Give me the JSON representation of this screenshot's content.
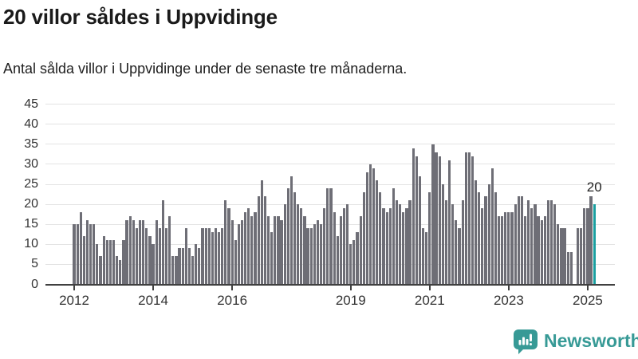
{
  "header": {
    "title": "20 villor såldes i Uppvidinge",
    "subtitle": "Antal sålda villor i Uppvidinge under de senaste tre månaderna."
  },
  "chart_data": {
    "type": "bar",
    "title": "20 villor såldes i Uppvidinge",
    "xlabel": "",
    "ylabel": "",
    "x_start": "2012-01",
    "interval": "monthly",
    "ylim": [
      0,
      45
    ],
    "grid": true,
    "legend": false,
    "y_ticks": [
      0,
      5,
      10,
      15,
      20,
      25,
      30,
      35,
      40,
      45
    ],
    "x_ticks": [
      {
        "label": "2012",
        "month": 0
      },
      {
        "label": "2014",
        "month": 24
      },
      {
        "label": "2016",
        "month": 48
      },
      {
        "label": "2019",
        "month": 84
      },
      {
        "label": "2021",
        "month": 108
      },
      {
        "label": "2023",
        "month": 132
      },
      {
        "label": "2025",
        "month": 156
      }
    ],
    "values": [
      15,
      15,
      18,
      12,
      16,
      15,
      15,
      10,
      7,
      12,
      11,
      11,
      11,
      7,
      6,
      11,
      16,
      17,
      16,
      14,
      16,
      16,
      14,
      12,
      10,
      16,
      14,
      21,
      14,
      17,
      7,
      7,
      9,
      9,
      14,
      9,
      7,
      10,
      9,
      14,
      14,
      14,
      13,
      14,
      13,
      14,
      21,
      19,
      16,
      11,
      15,
      16,
      18,
      19,
      17,
      18,
      22,
      26,
      22,
      17,
      13,
      17,
      17,
      16,
      20,
      24,
      27,
      23,
      20,
      19,
      17,
      14,
      14,
      15,
      16,
      15,
      19,
      24,
      24,
      18,
      12,
      17,
      19,
      20,
      10,
      11,
      13,
      17,
      23,
      28,
      30,
      29,
      26,
      23,
      19,
      18,
      19,
      24,
      21,
      20,
      18,
      19,
      21,
      34,
      32,
      27,
      14,
      13,
      23,
      35,
      33,
      32,
      25,
      21,
      31,
      20,
      16,
      14,
      21,
      33,
      33,
      32,
      26,
      23,
      19,
      22,
      25,
      29,
      23,
      17,
      17,
      18,
      18,
      18,
      20,
      22,
      22,
      17,
      21,
      19,
      20,
      17,
      16,
      17,
      21,
      21,
      20,
      15,
      14,
      14,
      8,
      8,
      0,
      14,
      14,
      19,
      19,
      22,
      20
    ],
    "highlight_index": 158,
    "annotation": {
      "label": "20",
      "index": 158
    },
    "colors": {
      "bar": "#6e6e76",
      "highlight": "#1a9fa0",
      "grid": "#e3e3e3",
      "axis": "#404040",
      "tick_text": "#333333"
    }
  },
  "footer": {
    "brand": "Newsworthy",
    "brand_color": "#379a96",
    "logo_icon": "newsworthy-speech-bubble-chart-icon"
  }
}
